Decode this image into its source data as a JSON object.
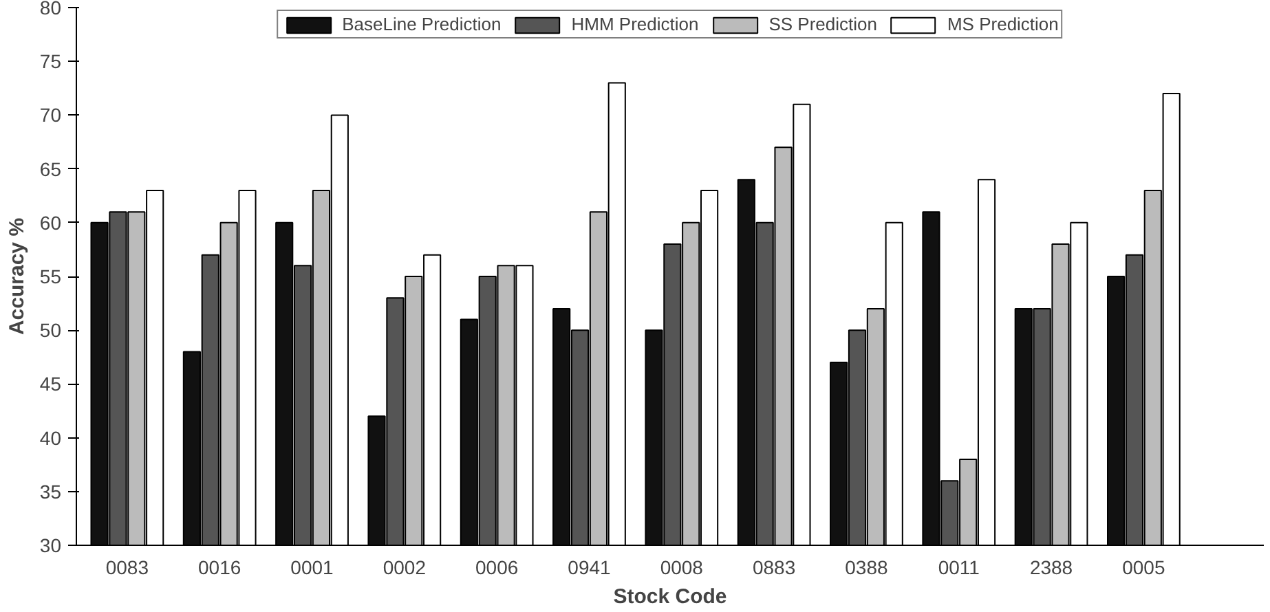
{
  "chart_data": {
    "type": "bar",
    "xlabel": "Stock Code",
    "ylabel": "Accuracy %",
    "categories": [
      "0083",
      "0016",
      "0001",
      "0002",
      "0006",
      "0941",
      "0008",
      "0883",
      "0388",
      "0011",
      "2388",
      "0005"
    ],
    "series": [
      {
        "name": "BaseLine Prediction",
        "color": "#111111",
        "values": [
          60,
          48,
          60,
          42,
          51,
          52,
          50,
          64,
          47,
          61,
          52,
          55
        ]
      },
      {
        "name": "HMM Prediction",
        "color": "#555555",
        "values": [
          61,
          57,
          56,
          53,
          55,
          50,
          58,
          60,
          50,
          36,
          52,
          57
        ]
      },
      {
        "name": "SS Prediction",
        "color": "#bbbbbb",
        "values": [
          61,
          60,
          63,
          55,
          56,
          61,
          60,
          67,
          52,
          38,
          58,
          63
        ]
      },
      {
        "name": "MS Prediction",
        "color": "#ffffff",
        "values": [
          63,
          63,
          70,
          57,
          56,
          73,
          63,
          71,
          60,
          64,
          60,
          72
        ]
      }
    ],
    "ylim": [
      30,
      80
    ],
    "yticks": [
      30,
      35,
      40,
      45,
      50,
      55,
      60,
      65,
      70,
      75,
      80
    ],
    "grid": false,
    "legend": "top"
  }
}
